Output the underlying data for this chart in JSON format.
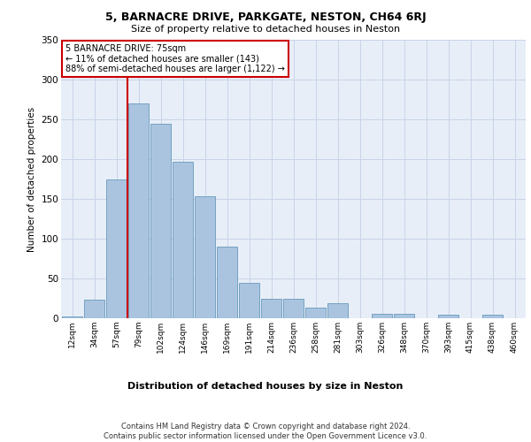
{
  "title1": "5, BARNACRE DRIVE, PARKGATE, NESTON, CH64 6RJ",
  "title2": "Size of property relative to detached houses in Neston",
  "xlabel": "Distribution of detached houses by size in Neston",
  "ylabel": "Number of detached properties",
  "bar_labels": [
    "12sqm",
    "34sqm",
    "57sqm",
    "79sqm",
    "102sqm",
    "124sqm",
    "146sqm",
    "169sqm",
    "191sqm",
    "214sqm",
    "236sqm",
    "258sqm",
    "281sqm",
    "303sqm",
    "326sqm",
    "348sqm",
    "370sqm",
    "393sqm",
    "415sqm",
    "438sqm",
    "460sqm"
  ],
  "bar_values": [
    2,
    23,
    175,
    270,
    245,
    197,
    153,
    90,
    45,
    25,
    25,
    13,
    19,
    0,
    6,
    6,
    0,
    4,
    0,
    5,
    0
  ],
  "bar_color": "#aac4e0",
  "bar_edge_color": "#6699bb",
  "grid_color": "#c8d4e8",
  "bg_color": "#e8eef8",
  "annotation_text": "5 BARNACRE DRIVE: 75sqm\n← 11% of detached houses are smaller (143)\n88% of semi-detached houses are larger (1,122) →",
  "annotation_box_color": "#ffffff",
  "annotation_box_edge": "#cc0000",
  "vline_color": "#cc0000",
  "footnote": "Contains HM Land Registry data © Crown copyright and database right 2024.\nContains public sector information licensed under the Open Government Licence v3.0.",
  "ylim": [
    0,
    350
  ],
  "yticks": [
    0,
    50,
    100,
    150,
    200,
    250,
    300,
    350
  ]
}
